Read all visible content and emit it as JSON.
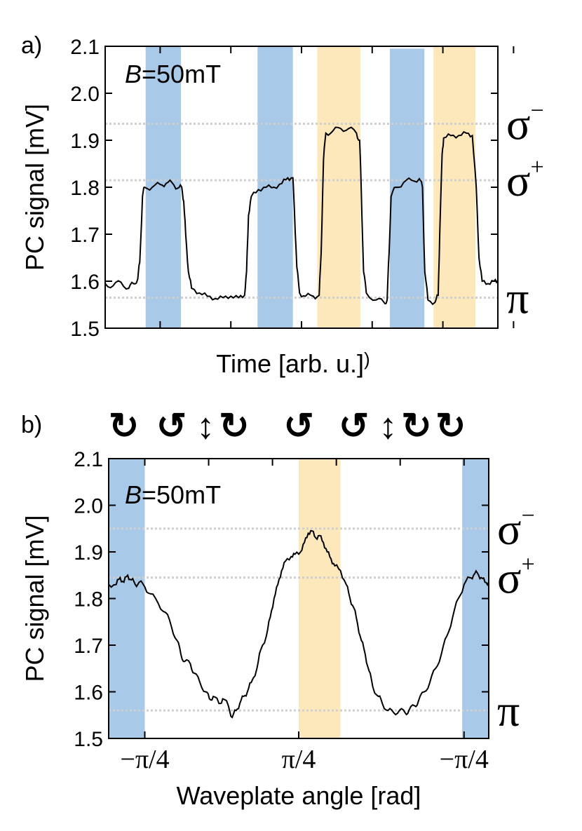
{
  "colors": {
    "blue": "#a9c9e8",
    "yellow": "#fde8bc",
    "ref_line": "#cfcfcf",
    "trace": "#000000"
  },
  "chart_data": [
    {
      "panel": "a)",
      "type": "line",
      "annotation": "B=50mT",
      "annotation_var": "B",
      "annotation_rest": "=50mT",
      "xlabel": "Time [arb. u.]",
      "xlabel_suffix": ")",
      "ylabel": "PC signal [mV]",
      "ylim": [
        1.5,
        2.1
      ],
      "xlim": [
        0,
        1
      ],
      "yticks": [
        "1.5",
        "1.6",
        "1.7",
        "1.8",
        "1.9",
        "2.0",
        "2.1"
      ],
      "ytick_values": [
        1.5,
        1.6,
        1.7,
        1.8,
        1.9,
        2.0,
        2.1
      ],
      "ref_lines": [
        {
          "value": 1.935,
          "label": "σ⁻",
          "base": "σ",
          "sup": "−"
        },
        {
          "value": 1.815,
          "label": "σ⁺",
          "base": "σ",
          "sup": "+"
        },
        {
          "value": 1.565,
          "label": "π",
          "base": "π",
          "sup": ""
        }
      ],
      "bands": [
        {
          "x0": 0.103,
          "x1": 0.193,
          "color": "blue",
          "top": 2.1
        },
        {
          "x0": 0.388,
          "x1": 0.478,
          "color": "blue",
          "top": 2.1
        },
        {
          "x0": 0.54,
          "x1": 0.65,
          "color": "yellow",
          "top": 2.1
        },
        {
          "x0": 0.725,
          "x1": 0.813,
          "color": "blue",
          "top": 2.095
        },
        {
          "x0": 0.836,
          "x1": 0.943,
          "color": "yellow",
          "top": 2.1
        }
      ],
      "series": [
        {
          "name": "PC signal",
          "points": [
            [
              0.0,
              1.595
            ],
            [
              0.02,
              1.59
            ],
            [
              0.04,
              1.598
            ],
            [
              0.06,
              1.585
            ],
            [
              0.072,
              1.595
            ],
            [
              0.083,
              1.605
            ],
            [
              0.088,
              1.64
            ],
            [
              0.095,
              1.78
            ],
            [
              0.1,
              1.8
            ],
            [
              0.12,
              1.8
            ],
            [
              0.14,
              1.806
            ],
            [
              0.155,
              1.808
            ],
            [
              0.17,
              1.81
            ],
            [
              0.185,
              1.798
            ],
            [
              0.195,
              1.8
            ],
            [
              0.2,
              1.77
            ],
            [
              0.205,
              1.7
            ],
            [
              0.212,
              1.62
            ],
            [
              0.22,
              1.585
            ],
            [
              0.24,
              1.575
            ],
            [
              0.26,
              1.568
            ],
            [
              0.28,
              1.563
            ],
            [
              0.3,
              1.565
            ],
            [
              0.32,
              1.568
            ],
            [
              0.34,
              1.565
            ],
            [
              0.355,
              1.57
            ],
            [
              0.36,
              1.62
            ],
            [
              0.365,
              1.74
            ],
            [
              0.372,
              1.78
            ],
            [
              0.39,
              1.795
            ],
            [
              0.41,
              1.8
            ],
            [
              0.43,
              1.8
            ],
            [
              0.45,
              1.808
            ],
            [
              0.465,
              1.82
            ],
            [
              0.478,
              1.82
            ],
            [
              0.482,
              1.75
            ],
            [
              0.488,
              1.63
            ],
            [
              0.495,
              1.575
            ],
            [
              0.51,
              1.568
            ],
            [
              0.53,
              1.568
            ],
            [
              0.545,
              1.57
            ],
            [
              0.55,
              1.66
            ],
            [
              0.556,
              1.86
            ],
            [
              0.562,
              1.915
            ],
            [
              0.58,
              1.92
            ],
            [
              0.6,
              1.925
            ],
            [
              0.62,
              1.925
            ],
            [
              0.64,
              1.915
            ],
            [
              0.648,
              1.9
            ],
            [
              0.652,
              1.8
            ],
            [
              0.658,
              1.62
            ],
            [
              0.665,
              1.575
            ],
            [
              0.69,
              1.56
            ],
            [
              0.71,
              1.555
            ],
            [
              0.718,
              1.56
            ],
            [
              0.723,
              1.66
            ],
            [
              0.728,
              1.78
            ],
            [
              0.74,
              1.8
            ],
            [
              0.76,
              1.81
            ],
            [
              0.78,
              1.815
            ],
            [
              0.8,
              1.818
            ],
            [
              0.808,
              1.8
            ],
            [
              0.814,
              1.62
            ],
            [
              0.822,
              1.56
            ],
            [
              0.84,
              1.555
            ],
            [
              0.848,
              1.57
            ],
            [
              0.852,
              1.7
            ],
            [
              0.858,
              1.87
            ],
            [
              0.862,
              1.905
            ],
            [
              0.88,
              1.91
            ],
            [
              0.9,
              1.91
            ],
            [
              0.92,
              1.915
            ],
            [
              0.935,
              1.91
            ],
            [
              0.945,
              1.8
            ],
            [
              0.952,
              1.65
            ],
            [
              0.96,
              1.6
            ],
            [
              0.975,
              1.595
            ],
            [
              0.99,
              1.6
            ],
            [
              1.0,
              1.6
            ]
          ]
        }
      ]
    },
    {
      "panel": "b)",
      "type": "line",
      "annotation": "B=50mT",
      "annotation_var": "B",
      "annotation_rest": "=50mT",
      "xlabel": "Waveplate angle [rad]",
      "ylabel": "PC signal [mV]",
      "ylim": [
        1.5,
        2.1
      ],
      "xlim": [
        0,
        1
      ],
      "yticks": [
        "1.5",
        "1.6",
        "1.7",
        "1.8",
        "1.9",
        "2.0",
        "2.1"
      ],
      "ytick_values": [
        1.5,
        1.6,
        1.7,
        1.8,
        1.9,
        2.0,
        2.1
      ],
      "xticks": [
        {
          "value": 0.095,
          "label": "−π/4"
        },
        {
          "value": 0.5,
          "label": "π/4"
        },
        {
          "value": 0.935,
          "label": "−π/4"
        }
      ],
      "ref_lines": [
        {
          "value": 1.95,
          "label": "σ⁻",
          "base": "σ",
          "sup": "−"
        },
        {
          "value": 1.845,
          "label": "σ⁺",
          "base": "σ",
          "sup": "+"
        },
        {
          "value": 1.56,
          "label": "π",
          "base": "π",
          "sup": ""
        }
      ],
      "bands": [
        {
          "x0": 0.0,
          "x1": 0.095,
          "color": "blue",
          "top": 2.1
        },
        {
          "x0": 0.5,
          "x1": 0.61,
          "color": "yellow",
          "top": 2.1
        },
        {
          "x0": 0.93,
          "x1": 1.0,
          "color": "blue",
          "top": 2.1
        }
      ],
      "polarization_icons": [
        {
          "name": "circular-cw-full-icon",
          "glyph": "↻",
          "pos": 0.04
        },
        {
          "name": "elliptical-icon",
          "glyph": "↺",
          "pos": 0.165
        },
        {
          "name": "linear-vertical-icon",
          "glyph": "↕",
          "pos": 0.255
        },
        {
          "name": "elliptical-icon",
          "glyph": "↻",
          "pos": 0.33
        },
        {
          "name": "circular-ccw-full-icon",
          "glyph": "↺",
          "pos": 0.5
        },
        {
          "name": "elliptical-icon",
          "glyph": "↺",
          "pos": 0.645
        },
        {
          "name": "linear-vertical-icon",
          "glyph": "↕",
          "pos": 0.735
        },
        {
          "name": "elliptical-icon",
          "glyph": "↻",
          "pos": 0.81
        },
        {
          "name": "circular-cw-full-icon",
          "glyph": "↻",
          "pos": 0.9
        }
      ],
      "series": [
        {
          "name": "PC signal",
          "points": [
            [
              0.0,
              1.83
            ],
            [
              0.02,
              1.83
            ],
            [
              0.03,
              1.845
            ],
            [
              0.04,
              1.835
            ],
            [
              0.05,
              1.85
            ],
            [
              0.06,
              1.84
            ],
            [
              0.07,
              1.83
            ],
            [
              0.08,
              1.835
            ],
            [
              0.095,
              1.825
            ],
            [
              0.11,
              1.81
            ],
            [
              0.13,
              1.79
            ],
            [
              0.15,
              1.77
            ],
            [
              0.165,
              1.74
            ],
            [
              0.18,
              1.71
            ],
            [
              0.19,
              1.68
            ],
            [
              0.2,
              1.665
            ],
            [
              0.215,
              1.66
            ],
            [
              0.225,
              1.64
            ],
            [
              0.24,
              1.62
            ],
            [
              0.255,
              1.6
            ],
            [
              0.265,
              1.585
            ],
            [
              0.275,
              1.59
            ],
            [
              0.29,
              1.575
            ],
            [
              0.3,
              1.585
            ],
            [
              0.315,
              1.57
            ],
            [
              0.325,
              1.545
            ],
            [
              0.335,
              1.56
            ],
            [
              0.345,
              1.575
            ],
            [
              0.355,
              1.59
            ],
            [
              0.365,
              1.6
            ],
            [
              0.375,
              1.62
            ],
            [
              0.39,
              1.65
            ],
            [
              0.4,
              1.69
            ],
            [
              0.415,
              1.72
            ],
            [
              0.425,
              1.76
            ],
            [
              0.435,
              1.8
            ],
            [
              0.445,
              1.83
            ],
            [
              0.455,
              1.86
            ],
            [
              0.465,
              1.88
            ],
            [
              0.48,
              1.89
            ],
            [
              0.49,
              1.895
            ],
            [
              0.505,
              1.9
            ],
            [
              0.515,
              1.92
            ],
            [
              0.525,
              1.94
            ],
            [
              0.535,
              1.945
            ],
            [
              0.545,
              1.93
            ],
            [
              0.555,
              1.935
            ],
            [
              0.565,
              1.92
            ],
            [
              0.575,
              1.9
            ],
            [
              0.585,
              1.885
            ],
            [
              0.595,
              1.87
            ],
            [
              0.61,
              1.86
            ],
            [
              0.625,
              1.83
            ],
            [
              0.635,
              1.8
            ],
            [
              0.645,
              1.78
            ],
            [
              0.655,
              1.745
            ],
            [
              0.665,
              1.71
            ],
            [
              0.675,
              1.68
            ],
            [
              0.685,
              1.645
            ],
            [
              0.695,
              1.61
            ],
            [
              0.71,
              1.59
            ],
            [
              0.72,
              1.575
            ],
            [
              0.735,
              1.56
            ],
            [
              0.75,
              1.555
            ],
            [
              0.765,
              1.56
            ],
            [
              0.78,
              1.555
            ],
            [
              0.79,
              1.56
            ],
            [
              0.805,
              1.57
            ],
            [
              0.815,
              1.58
            ],
            [
              0.83,
              1.6
            ],
            [
              0.845,
              1.62
            ],
            [
              0.86,
              1.65
            ],
            [
              0.875,
              1.68
            ],
            [
              0.89,
              1.72
            ],
            [
              0.905,
              1.76
            ],
            [
              0.92,
              1.8
            ],
            [
              0.935,
              1.83
            ],
            [
              0.95,
              1.845
            ],
            [
              0.96,
              1.85
            ],
            [
              0.97,
              1.855
            ],
            [
              0.98,
              1.845
            ],
            [
              0.99,
              1.835
            ],
            [
              1.0,
              1.835
            ]
          ]
        }
      ]
    }
  ]
}
